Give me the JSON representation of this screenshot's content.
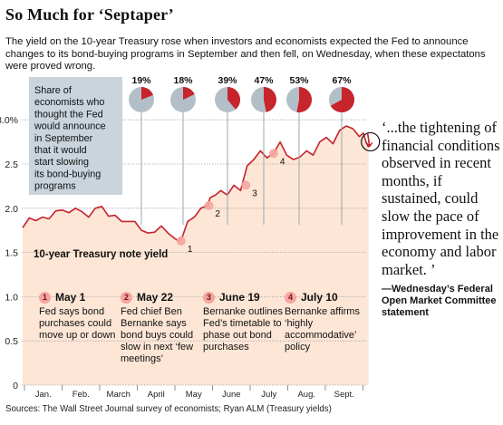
{
  "title": "So Much for ‘Septaper’",
  "subtitle": "The yield on the 10-year Treasury rose when investors and economists expected the Fed to announce changes to its bond-buying programs in September and then fell, on Wednesday, when these expectatons were proved wrong.",
  "colors": {
    "fill": "#fde6d6",
    "line": "#c2232c",
    "pie_red": "#c8242c",
    "pie_grey": "#b3bfc8",
    "callout": "#c9d4dc",
    "marker": "#f4a6a0"
  },
  "share_box": "Share of economists who thought the Fed would announce in September that it would start slowing its bond-buying programs",
  "series_label": "10-year Treasury note yield",
  "quote": "‘...the tightening of financial conditions observed in recent months, if sustained, could slow the pace of improvement in the economy and labor market. ’",
  "quote_attr": "—Wednesday’s Federal Open Market Committee statement",
  "source": "Sources: The Wall Street Journal survey of economists; Ryan ALM (Treasury yields)",
  "events": [
    {
      "num": "1",
      "date": "May 1",
      "text": "Fed says bond purchases could move up or down"
    },
    {
      "num": "2",
      "date": "May 22",
      "text": "Fed chief Ben Bernanke says bond buys could slow  in next ‘few meetings’"
    },
    {
      "num": "3",
      "date": "June 19",
      "text": "Bernanke outlines Fed’s timetable to phase out bond purchases"
    },
    {
      "num": "4",
      "date": "July 10",
      "text": "Bernanke affirms ‘highly accommodative’ policy"
    }
  ],
  "chart_data": {
    "type": "area",
    "ylim": [
      0,
      3.25
    ],
    "y_ticks": [
      "0",
      "0.5",
      "1.0",
      "1.5",
      "2.0",
      "2.5",
      "3.0%"
    ],
    "y_tick_values": [
      0,
      0.5,
      1.0,
      1.5,
      2.0,
      2.5,
      3.0
    ],
    "month_labels": [
      "Jan.",
      "Feb.",
      "March",
      "April",
      "May",
      "June",
      "July",
      "Aug.",
      "Sept."
    ],
    "series": [
      {
        "name": "10-year Treasury note yield",
        "x_day": [
          0,
          5,
          10,
          15,
          20,
          25,
          30,
          35,
          40,
          45,
          50,
          55,
          60,
          65,
          70,
          75,
          80,
          85,
          90,
          95,
          100,
          105,
          110,
          115,
          118,
          121,
          125,
          130,
          135,
          140,
          142,
          146,
          150,
          155,
          160,
          165,
          170,
          175,
          180,
          185,
          190,
          195,
          200,
          205,
          210,
          215,
          220,
          225,
          230,
          235,
          240,
          245,
          250,
          255,
          258,
          260,
          262
        ],
        "y": [
          1.78,
          1.89,
          1.86,
          1.9,
          1.88,
          1.97,
          1.98,
          1.95,
          2.0,
          1.96,
          1.9,
          2.0,
          2.02,
          1.91,
          1.92,
          1.85,
          1.85,
          1.85,
          1.75,
          1.72,
          1.73,
          1.8,
          1.72,
          1.66,
          1.63,
          1.68,
          1.85,
          1.9,
          2.0,
          2.03,
          2.12,
          2.15,
          2.2,
          2.15,
          2.26,
          2.2,
          2.48,
          2.55,
          2.65,
          2.57,
          2.62,
          2.75,
          2.6,
          2.55,
          2.58,
          2.65,
          2.6,
          2.75,
          2.8,
          2.73,
          2.88,
          2.93,
          2.9,
          2.81,
          2.85,
          2.75,
          2.69
        ]
      }
    ],
    "pies": [
      {
        "label": "19%",
        "value": 19
      },
      {
        "label": "18%",
        "value": 18
      },
      {
        "label": "39%",
        "value": 39
      },
      {
        "label": "47%",
        "value": 47
      },
      {
        "label": "53%",
        "value": 53
      },
      {
        "label": "67%",
        "value": 67
      }
    ],
    "event_markers": [
      {
        "num": "1",
        "x_day": 120,
        "y": 1.63
      },
      {
        "num": "2",
        "x_day": 141,
        "y": 2.03
      },
      {
        "num": "3",
        "x_day": 169,
        "y": 2.26
      },
      {
        "num": "4",
        "x_day": 190,
        "y": 2.62
      }
    ]
  }
}
